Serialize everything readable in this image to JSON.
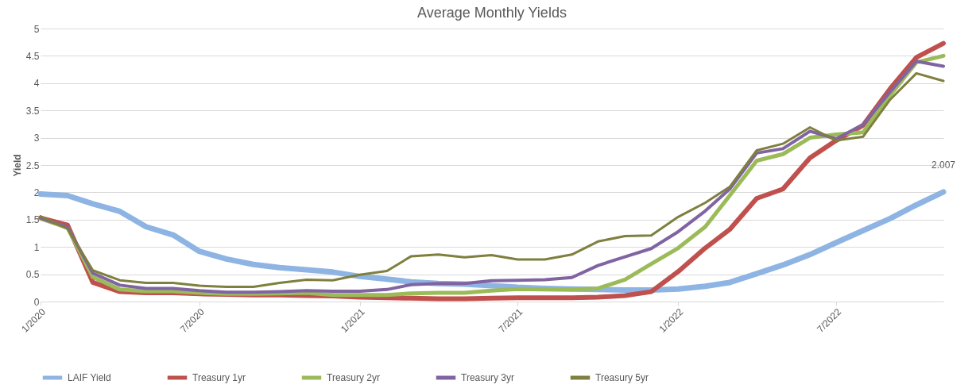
{
  "chart_data": {
    "type": "line",
    "title": "Average Monthly Yields",
    "ylabel": "Yield",
    "x": [
      "2020-01",
      "2020-02",
      "2020-03",
      "2020-04",
      "2020-05",
      "2020-06",
      "2020-07",
      "2020-08",
      "2020-09",
      "2020-10",
      "2020-11",
      "2020-12",
      "2021-01",
      "2021-02",
      "2021-03",
      "2021-04",
      "2021-05",
      "2021-06",
      "2021-07",
      "2021-08",
      "2021-09",
      "2021-10",
      "2021-11",
      "2021-12",
      "2022-01",
      "2022-02",
      "2022-03",
      "2022-04",
      "2022-05",
      "2022-06",
      "2022-07",
      "2022-08",
      "2022-09",
      "2022-10",
      "2022-11"
    ],
    "xlim": [
      "2020-01",
      "2022-11"
    ],
    "xticks": [
      {
        "value": "2020-01",
        "label": "1/2020"
      },
      {
        "value": "2020-07",
        "label": "7/2020"
      },
      {
        "value": "2021-01",
        "label": "1/2021"
      },
      {
        "value": "2021-07",
        "label": "7/2021"
      },
      {
        "value": "2022-01",
        "label": "1/2022"
      },
      {
        "value": "2022-07",
        "label": "7/2022"
      }
    ],
    "ylim": [
      0,
      5
    ],
    "yticks": [
      0,
      0.5,
      1,
      1.5,
      2,
      2.5,
      3,
      3.5,
      4,
      4.5,
      5
    ],
    "grid": "y",
    "legend": "bottom",
    "line_style": "solid",
    "marker": "none",
    "series": [
      {
        "name": "LAIF Yield",
        "color": "#8eb4e3",
        "values": [
          1.97,
          1.94,
          1.79,
          1.65,
          1.37,
          1.22,
          0.92,
          0.78,
          0.68,
          0.62,
          0.58,
          0.54,
          0.46,
          0.41,
          0.36,
          0.33,
          0.32,
          0.29,
          0.26,
          0.24,
          0.23,
          0.22,
          0.21,
          0.21,
          0.23,
          0.28,
          0.35,
          0.51,
          0.67,
          0.86,
          1.08,
          1.3,
          1.52,
          1.77,
          2.007
        ],
        "value_labels": [
          null,
          null,
          null,
          null,
          null,
          null,
          null,
          null,
          null,
          null,
          null,
          null,
          null,
          null,
          null,
          null,
          null,
          null,
          null,
          null,
          null,
          null,
          null,
          null,
          null,
          null,
          null,
          null,
          null,
          null,
          null,
          null,
          null,
          null,
          "2.007"
        ]
      },
      {
        "name": "Treasury 1yr",
        "color": "#c0504d",
        "values": [
          1.53,
          1.4,
          0.35,
          0.18,
          0.16,
          0.16,
          0.14,
          0.13,
          0.12,
          0.12,
          0.11,
          0.1,
          0.08,
          0.07,
          0.06,
          0.05,
          0.05,
          0.06,
          0.07,
          0.07,
          0.07,
          0.08,
          0.11,
          0.18,
          0.55,
          0.98,
          1.32,
          1.89,
          2.06,
          2.63,
          2.95,
          3.23,
          3.9,
          4.47,
          4.73
        ]
      },
      {
        "name": "Treasury 2yr",
        "color": "#9bbb59",
        "values": [
          1.52,
          1.35,
          0.45,
          0.22,
          0.19,
          0.19,
          0.16,
          0.14,
          0.14,
          0.15,
          0.16,
          0.12,
          0.12,
          0.12,
          0.15,
          0.16,
          0.16,
          0.2,
          0.23,
          0.22,
          0.22,
          0.24,
          0.4,
          0.69,
          0.98,
          1.37,
          1.94,
          2.58,
          2.7,
          3.0,
          3.06,
          3.1,
          3.78,
          4.38,
          4.5
        ]
      },
      {
        "name": "Treasury 3yr",
        "color": "#8064a2",
        "values": [
          1.53,
          1.36,
          0.52,
          0.3,
          0.24,
          0.24,
          0.2,
          0.17,
          0.17,
          0.18,
          0.2,
          0.19,
          0.19,
          0.22,
          0.31,
          0.33,
          0.33,
          0.38,
          0.39,
          0.4,
          0.44,
          0.66,
          0.82,
          0.97,
          1.28,
          1.66,
          2.06,
          2.72,
          2.8,
          3.12,
          2.98,
          3.24,
          3.84,
          4.4,
          4.31
        ]
      },
      {
        "name": "Treasury 5yr",
        "color": "#7f7f3f",
        "values": [
          1.56,
          1.33,
          0.57,
          0.39,
          0.34,
          0.34,
          0.29,
          0.27,
          0.27,
          0.34,
          0.4,
          0.39,
          0.49,
          0.56,
          0.83,
          0.86,
          0.81,
          0.85,
          0.77,
          0.77,
          0.86,
          1.1,
          1.2,
          1.21,
          1.55,
          1.81,
          2.1,
          2.77,
          2.89,
          3.19,
          2.95,
          3.02,
          3.7,
          4.18,
          4.04
        ]
      }
    ]
  }
}
